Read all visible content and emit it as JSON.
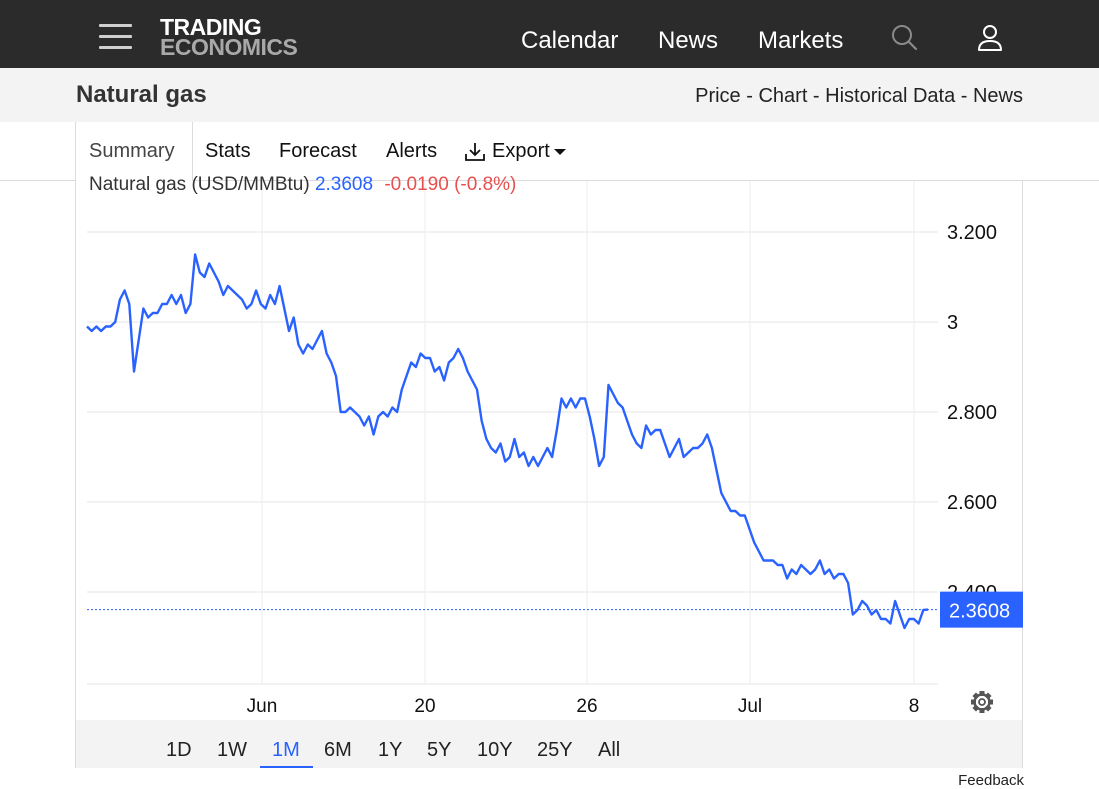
{
  "header": {
    "logo_line1": "TRADING",
    "logo_line2": "ECONOMICS",
    "nav": [
      "Calendar",
      "News",
      "Markets"
    ],
    "icons": [
      "menu-icon",
      "search-icon",
      "user-icon"
    ]
  },
  "page": {
    "title": "Natural gas",
    "breadcrumbs": [
      "Price",
      "Chart",
      "Historical Data",
      "News"
    ],
    "separator": " - "
  },
  "tabs": [
    "Summary",
    "Stats",
    "Forecast",
    "Alerts",
    "Export"
  ],
  "active_tab": "Summary",
  "legend": {
    "name": "Natural gas (USD/MMBtu)",
    "price": "2.3608",
    "change": "-0.0190 (-0.8%)"
  },
  "ranges": [
    "1D",
    "1W",
    "1M",
    "6M",
    "1Y",
    "5Y",
    "10Y",
    "25Y",
    "All"
  ],
  "active_range": "1M",
  "feedback": "Feedback",
  "colors": {
    "line": "#2962ff",
    "negative": "#e84f4f",
    "topbar": "#2b2b2b"
  },
  "chart_data": {
    "type": "line",
    "title": "Natural gas (USD/MMBtu)",
    "x_tick_labels": [
      "Jun",
      "20",
      "26",
      "Jul",
      "8"
    ],
    "y_tick_labels": [
      "3.200",
      "3",
      "2.800",
      "2.600",
      "2.400"
    ],
    "y_ticks": [
      3.2,
      3.0,
      2.8,
      2.6,
      2.4
    ],
    "ylim": [
      2.2,
      3.3
    ],
    "last_value": 2.3608,
    "last_label": "2.3608",
    "grid": true,
    "series": [
      {
        "values": [
          2.99,
          2.98,
          2.99,
          2.98,
          2.99,
          2.99,
          3.0,
          3.05,
          3.07,
          3.04,
          2.89,
          2.96,
          3.03,
          3.01,
          3.02,
          3.02,
          3.04,
          3.04,
          3.06,
          3.04,
          3.06,
          3.02,
          3.04,
          3.15,
          3.11,
          3.1,
          3.13,
          3.11,
          3.09,
          3.06,
          3.08,
          3.07,
          3.06,
          3.05,
          3.03,
          3.04,
          3.07,
          3.04,
          3.03,
          3.06,
          3.04,
          3.08,
          3.03,
          2.98,
          3.01,
          2.95,
          2.93,
          2.95,
          2.94,
          2.96,
          2.98,
          2.93,
          2.91,
          2.88,
          2.8,
          2.8,
          2.81,
          2.8,
          2.79,
          2.77,
          2.79,
          2.75,
          2.79,
          2.8,
          2.79,
          2.81,
          2.8,
          2.85,
          2.88,
          2.91,
          2.9,
          2.93,
          2.92,
          2.92,
          2.89,
          2.9,
          2.87,
          2.91,
          2.92,
          2.94,
          2.92,
          2.89,
          2.87,
          2.85,
          2.78,
          2.74,
          2.72,
          2.71,
          2.73,
          2.69,
          2.7,
          2.74,
          2.7,
          2.71,
          2.68,
          2.7,
          2.68,
          2.7,
          2.72,
          2.7,
          2.76,
          2.83,
          2.81,
          2.83,
          2.81,
          2.83,
          2.83,
          2.79,
          2.74,
          2.68,
          2.7,
          2.86,
          2.84,
          2.82,
          2.81,
          2.78,
          2.75,
          2.73,
          2.72,
          2.77,
          2.75,
          2.76,
          2.76,
          2.73,
          2.7,
          2.72,
          2.74,
          2.7,
          2.71,
          2.72,
          2.72,
          2.73,
          2.75,
          2.72,
          2.67,
          2.62,
          2.6,
          2.58,
          2.58,
          2.57,
          2.57,
          2.54,
          2.51,
          2.49,
          2.47,
          2.47,
          2.47,
          2.46,
          2.46,
          2.43,
          2.45,
          2.44,
          2.46,
          2.45,
          2.44,
          2.45,
          2.47,
          2.44,
          2.45,
          2.43,
          2.44,
          2.44,
          2.42,
          2.35,
          2.36,
          2.38,
          2.37,
          2.35,
          2.36,
          2.34,
          2.34,
          2.33,
          2.38,
          2.35,
          2.32,
          2.34,
          2.34,
          2.33,
          2.36,
          2.3608
        ]
      }
    ]
  }
}
